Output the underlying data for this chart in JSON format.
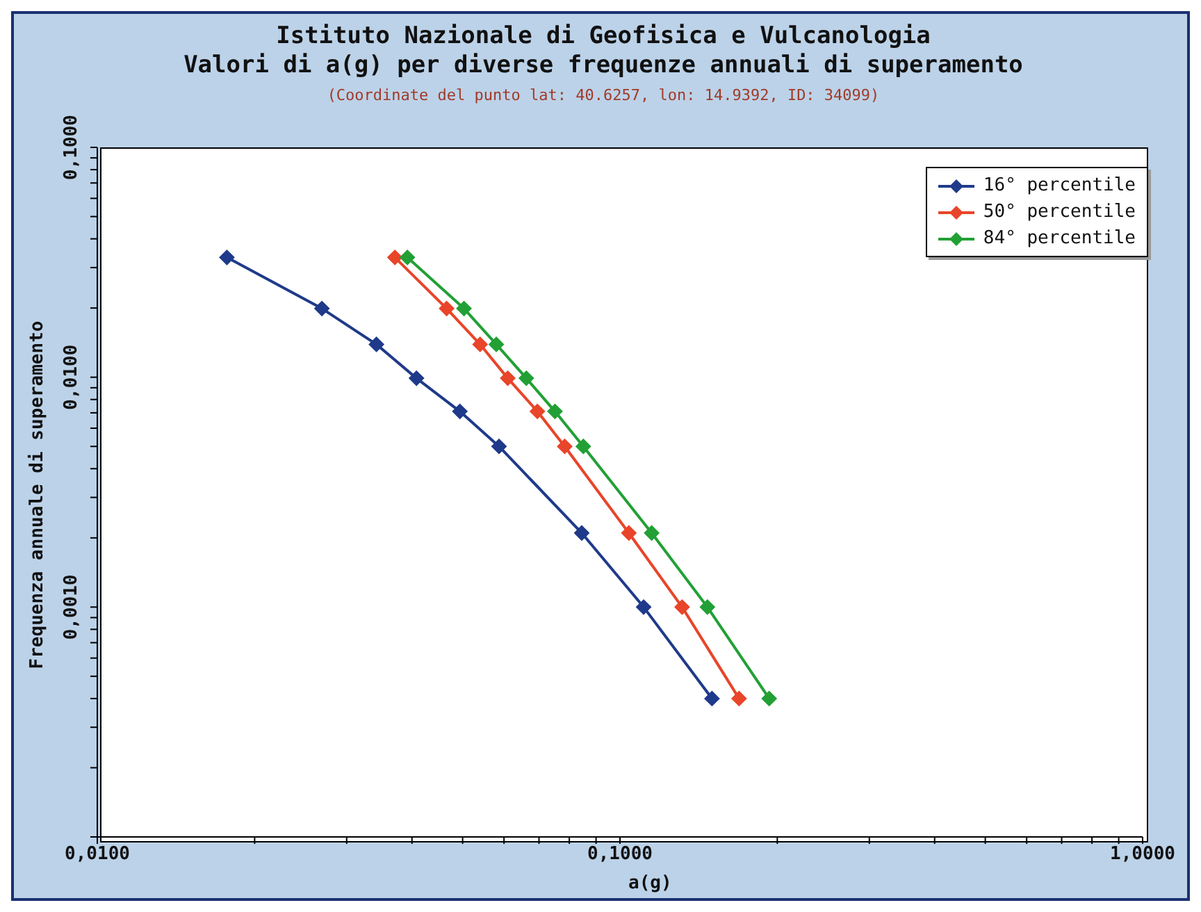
{
  "chart_data": {
    "type": "line",
    "title": "Istituto Nazionale di Geofisica e Vulcanologia\nValori di a(g) per diverse frequenze annuali di superamento",
    "subtitle": "(Coordinate del punto lat: 40.6257, lon: 14.9392, ID: 34099)",
    "xlabel": "a(g)",
    "ylabel": "Frequenza annuale di superamento",
    "log": "xy",
    "legend": "top right",
    "marker": "diamond",
    "line_style": "solid",
    "xlim": [
      0.01,
      1
    ],
    "ylim": [
      0.0001,
      0.1
    ],
    "xticks": [
      {
        "value": 0.01,
        "label": "0,0100"
      },
      {
        "value": 0.02,
        "label": null
      },
      {
        "value": 0.03,
        "label": null
      },
      {
        "value": 0.04,
        "label": null
      },
      {
        "value": 0.05,
        "label": null
      },
      {
        "value": 0.06,
        "label": null
      },
      {
        "value": 0.07,
        "label": null
      },
      {
        "value": 0.08,
        "label": null
      },
      {
        "value": 0.09,
        "label": null
      },
      {
        "value": 0.1,
        "label": "0,1000"
      },
      {
        "value": 0.2,
        "label": null
      },
      {
        "value": 0.3,
        "label": null
      },
      {
        "value": 0.4,
        "label": null
      },
      {
        "value": 0.5,
        "label": null
      },
      {
        "value": 0.6,
        "label": null
      },
      {
        "value": 0.7,
        "label": null
      },
      {
        "value": 0.8,
        "label": null
      },
      {
        "value": 0.9,
        "label": null
      },
      {
        "value": 1,
        "label": "1,0000"
      }
    ],
    "yticks": [
      {
        "value": 0.0001,
        "label": null
      },
      {
        "value": 0.0002,
        "label": null
      },
      {
        "value": 0.0003,
        "label": null
      },
      {
        "value": 0.0004,
        "label": null
      },
      {
        "value": 0.0005,
        "label": null
      },
      {
        "value": 0.0006,
        "label": null
      },
      {
        "value": 0.0007,
        "label": null
      },
      {
        "value": 0.0008,
        "label": null
      },
      {
        "value": 0.0009,
        "label": null
      },
      {
        "value": 0.001,
        "label": "0,0010"
      },
      {
        "value": 0.002,
        "label": null
      },
      {
        "value": 0.003,
        "label": null
      },
      {
        "value": 0.004,
        "label": null
      },
      {
        "value": 0.005,
        "label": null
      },
      {
        "value": 0.006,
        "label": null
      },
      {
        "value": 0.007,
        "label": null
      },
      {
        "value": 0.008,
        "label": null
      },
      {
        "value": 0.009,
        "label": null
      },
      {
        "value": 0.01,
        "label": "0,0100"
      },
      {
        "value": 0.02,
        "label": null
      },
      {
        "value": 0.03,
        "label": null
      },
      {
        "value": 0.04,
        "label": null
      },
      {
        "value": 0.05,
        "label": null
      },
      {
        "value": 0.06,
        "label": null
      },
      {
        "value": 0.07,
        "label": null
      },
      {
        "value": 0.08,
        "label": null
      },
      {
        "value": 0.09,
        "label": null
      },
      {
        "value": 0.1,
        "label": "0,1000"
      }
    ],
    "series": [
      {
        "name": "16° percentile",
        "color": "#1f3a8a",
        "x": [
          0.0177,
          0.0269,
          0.0342,
          0.0408,
          0.0494,
          0.0587,
          0.0845,
          0.111,
          0.15
        ],
        "values": [
          0.0332,
          0.0199,
          0.0139,
          0.0099,
          0.0071,
          0.005,
          0.0021,
          0.001,
          0.0004
        ]
      },
      {
        "name": "50° percentile",
        "color": "#e8452a",
        "x": [
          0.0371,
          0.0466,
          0.054,
          0.061,
          0.0695,
          0.0784,
          0.104,
          0.1315,
          0.169
        ],
        "values": [
          0.0332,
          0.0199,
          0.0139,
          0.0099,
          0.0071,
          0.005,
          0.0021,
          0.001,
          0.0004
        ]
      },
      {
        "name": "84° percentile",
        "color": "#22a035",
        "x": [
          0.0392,
          0.0503,
          0.058,
          0.0662,
          0.0751,
          0.0851,
          0.115,
          0.147,
          0.193
        ],
        "values": [
          0.0332,
          0.0199,
          0.0139,
          0.0099,
          0.0071,
          0.005,
          0.0021,
          0.001,
          0.0004
        ]
      }
    ]
  }
}
